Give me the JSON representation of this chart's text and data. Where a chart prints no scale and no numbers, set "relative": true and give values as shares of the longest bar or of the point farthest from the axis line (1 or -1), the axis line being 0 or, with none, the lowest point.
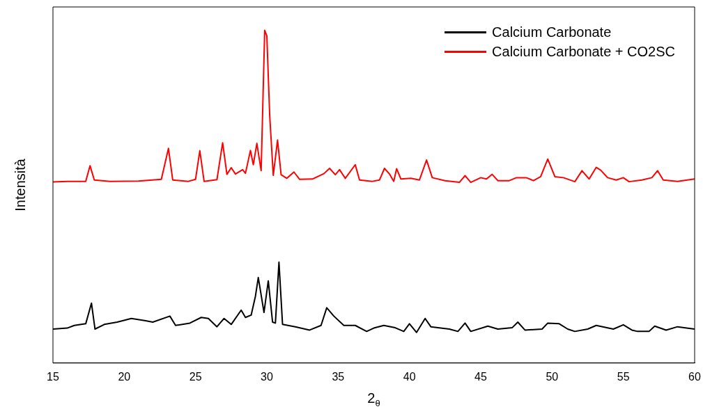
{
  "chart_data": {
    "type": "line",
    "relative": true,
    "xlabel": "2$_{θ}$",
    "ylabel": "Intensità",
    "xlim": [
      15,
      60
    ],
    "xticks": [
      15,
      20,
      25,
      30,
      35,
      40,
      45,
      50,
      55,
      60
    ],
    "legend": "top right",
    "grid": false,
    "marker": "none",
    "line_style": "solid",
    "series": [
      {
        "name": "Calcium Carbonate",
        "color": "#000000",
        "x": [
          15,
          16,
          16.5,
          17.3,
          17.7,
          17.95,
          18.6,
          19.5,
          20.5,
          21.5,
          22,
          23.2,
          23.6,
          24.6,
          25.4,
          25.9,
          26.5,
          27,
          27.5,
          28.2,
          28.5,
          28.9,
          29.2,
          29.4,
          29.8,
          30.1,
          30.4,
          30.6,
          30.85,
          31.1,
          32,
          33,
          33.8,
          34.2,
          34.7,
          35.4,
          36.2,
          37,
          37.5,
          38.2,
          39,
          39.6,
          40,
          40.5,
          41.1,
          41.5,
          42.8,
          43.4,
          43.9,
          44.3,
          45.5,
          46.2,
          47.2,
          47.6,
          48.1,
          49.3,
          49.7,
          50.5,
          51.1,
          51.6,
          52.5,
          53.1,
          54.3,
          55,
          55.6,
          56,
          56.8,
          57.2,
          58,
          58.8,
          60
        ],
        "values": [
          0.102,
          0.105,
          0.113,
          0.118,
          0.18,
          0.102,
          0.116,
          0.123,
          0.134,
          0.127,
          0.123,
          0.141,
          0.113,
          0.12,
          0.137,
          0.134,
          0.109,
          0.134,
          0.116,
          0.159,
          0.137,
          0.144,
          0.201,
          0.257,
          0.152,
          0.247,
          0.123,
          0.12,
          0.303,
          0.116,
          0.109,
          0.099,
          0.113,
          0.166,
          0.141,
          0.113,
          0.113,
          0.095,
          0.105,
          0.113,
          0.106,
          0.095,
          0.118,
          0.092,
          0.134,
          0.109,
          0.102,
          0.095,
          0.12,
          0.095,
          0.111,
          0.102,
          0.106,
          0.123,
          0.099,
          0.102,
          0.12,
          0.118,
          0.102,
          0.095,
          0.102,
          0.113,
          0.102,
          0.115,
          0.099,
          0.095,
          0.095,
          0.111,
          0.099,
          0.109,
          0.102
        ]
      },
      {
        "name": "Calcium Carbonate + CO2SC",
        "color": "#ff0000",
        "x": [
          15,
          16,
          17.3,
          17.6,
          17.9,
          19,
          21,
          22.6,
          23.1,
          23.4,
          24.5,
          25,
          25.3,
          25.6,
          26.5,
          26.9,
          27.2,
          27.5,
          27.8,
          28.3,
          28.5,
          28.85,
          29.05,
          29.3,
          29.6,
          29.85,
          30,
          30.2,
          30.45,
          30.75,
          31,
          31.4,
          31.9,
          32.3,
          33.2,
          34,
          34.4,
          34.8,
          35.1,
          35.5,
          36.2,
          36.5,
          37.4,
          37.9,
          38.25,
          38.6,
          38.9,
          39.1,
          39.4,
          40.1,
          40.7,
          41.2,
          41.6,
          42.5,
          43.5,
          43.9,
          44.3,
          45,
          45.4,
          45.8,
          46.2,
          47,
          47.5,
          48.2,
          48.7,
          49.2,
          49.7,
          50.2,
          50.8,
          51.6,
          52.1,
          52.6,
          53.1,
          53.4,
          53.9,
          54.5,
          55,
          55.4,
          56.3,
          57,
          57.4,
          57.8,
          58.8,
          60
        ],
        "values": [
          0.544,
          0.546,
          0.546,
          0.593,
          0.55,
          0.546,
          0.547,
          0.552,
          0.645,
          0.55,
          0.546,
          0.552,
          0.638,
          0.546,
          0.551,
          0.662,
          0.567,
          0.587,
          0.568,
          0.581,
          0.57,
          0.639,
          0.596,
          0.66,
          0.578,
          1,
          0.983,
          0.744,
          0.564,
          0.67,
          0.566,
          0.555,
          0.574,
          0.552,
          0.553,
          0.569,
          0.585,
          0.566,
          0.581,
          0.555,
          0.596,
          0.55,
          0.546,
          0.55,
          0.585,
          0.568,
          0.546,
          0.584,
          0.553,
          0.555,
          0.55,
          0.61,
          0.557,
          0.548,
          0.543,
          0.563,
          0.543,
          0.557,
          0.553,
          0.567,
          0.548,
          0.548,
          0.557,
          0.557,
          0.548,
          0.56,
          0.613,
          0.56,
          0.557,
          0.545,
          0.578,
          0.553,
          0.588,
          0.58,
          0.557,
          0.55,
          0.557,
          0.545,
          0.55,
          0.557,
          0.578,
          0.55,
          0.546,
          0.553
        ]
      }
    ]
  }
}
